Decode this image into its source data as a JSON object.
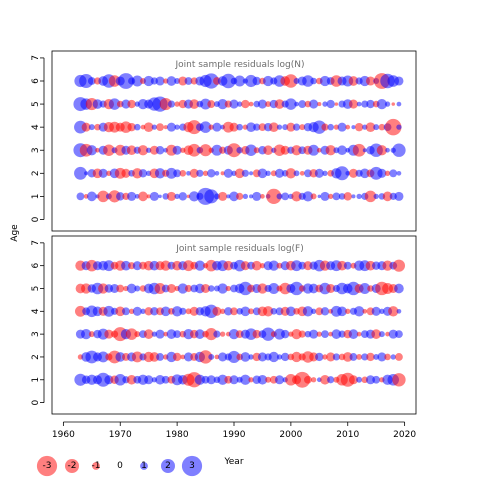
{
  "chart_data": [
    {
      "type": "scatter",
      "title": "Joint sample residuals log(N)",
      "ylabel": "Age",
      "xlim": [
        1958,
        2022
      ],
      "ylim": [
        -0.5,
        7.3
      ],
      "yticks": [
        0,
        1,
        2,
        3,
        4,
        5,
        6,
        7
      ],
      "ages": [
        1,
        2,
        3,
        4,
        5,
        6
      ],
      "years": [
        1963,
        1964,
        1965,
        1966,
        1967,
        1968,
        1969,
        1970,
        1971,
        1972,
        1973,
        1974,
        1975,
        1976,
        1977,
        1978,
        1979,
        1980,
        1981,
        1982,
        1983,
        1984,
        1985,
        1986,
        1987,
        1988,
        1989,
        1990,
        1991,
        1992,
        1993,
        1994,
        1995,
        1996,
        1997,
        1998,
        1999,
        2000,
        2001,
        2002,
        2003,
        2004,
        2005,
        2006,
        2007,
        2008,
        2009,
        2010,
        2011,
        2012,
        2013,
        2014,
        2015,
        2016,
        2017,
        2018,
        2019
      ],
      "residuals": [
        [
          1.0,
          -0.5,
          1.3,
          0.4,
          -1.6,
          0.7,
          -1.7,
          1.1,
          -0.9,
          1.2,
          0.5,
          -1.3,
          -0.4,
          1.2,
          0.3,
          0.8,
          -1.2,
          0.6,
          1.1,
          -0.3,
          1.4,
          0.9,
          2.5,
          2.0,
          0.7,
          -1.2,
          0.4,
          1.3,
          -0.9,
          0.6,
          0.4,
          1.2,
          -0.5,
          0.5,
          -2.2,
          0.7,
          1.0,
          0.6,
          -1.4,
          0.9,
          1.4,
          -0.7,
          0.3,
          1.2,
          -0.6,
          1.0,
          0.8,
          -1.1,
          0.4,
          0.6,
          0.9,
          -1.6,
          0.6,
          0.8,
          -1.3,
          0.9,
          1.2
        ],
        [
          1.8,
          0.4,
          1.1,
          -1.3,
          1.2,
          -0.6,
          1.3,
          -1.5,
          -1.2,
          0.8,
          -1.4,
          1.1,
          0.6,
          -1.3,
          1.4,
          -0.9,
          1.5,
          1.0,
          -0.8,
          0.5,
          -1.2,
          0.9,
          -0.6,
          1.1,
          0.5,
          -0.4,
          1.2,
          0.6,
          -1.3,
          0.9,
          0.4,
          -1.0,
          1.3,
          0.6,
          -0.7,
          1.2,
          0.8,
          -1.4,
          0.7,
          -0.5,
          1.0,
          -1.1,
          1.2,
          0.6,
          -0.8,
          1.4,
          2.0,
          0.5,
          -1.2,
          0.9,
          1.3,
          -1.0,
          1.8,
          1.2,
          -0.6,
          1.0,
          0.5
        ],
        [
          2.0,
          -1.8,
          1.4,
          -0.5,
          1.2,
          -1.6,
          0.7,
          -1.5,
          1.2,
          -1.3,
          0.9,
          -1.4,
          0.6,
          -1.2,
          1.1,
          0.5,
          -1.5,
          1.2,
          -0.6,
          -1.3,
          -1.8,
          0.8,
          -1.7,
          -0.6,
          1.5,
          -0.9,
          1.2,
          -2.0,
          0.8,
          -1.1,
          1.6,
          -0.7,
          1.1,
          -1.3,
          0.6,
          -1.6,
          -1.2,
          0.9,
          -1.4,
          1.0,
          -1.2,
          1.5,
          -0.5,
          1.2,
          -1.4,
          0.7,
          1.3,
          0.5,
          1.5,
          -1.8,
          0.4,
          1.1,
          1.9,
          -1.4,
          0.5,
          0.6,
          1.9
        ],
        [
          1.8,
          -1.2,
          0.7,
          -0.8,
          1.2,
          -1.4,
          -1.5,
          -1.2,
          -1.6,
          -1.1,
          0.8,
          -0.5,
          -1.3,
          0.6,
          -1.0,
          -0.4,
          1.2,
          0.6,
          0.9,
          -1.4,
          -2.0,
          1.0,
          1.6,
          -0.6,
          1.2,
          0.5,
          -1.5,
          -1.2,
          0.8,
          -0.6,
          1.3,
          0.9,
          -1.0,
          1.1,
          -1.3,
          0.6,
          0.7,
          -1.2,
          0.9,
          -0.7,
          1.1,
          1.4,
          1.9,
          -0.9,
          0.8,
          -0.6,
          1.2,
          -0.5,
          0.4,
          -1.1,
          0.6,
          -1.3,
          0.7,
          -0.8,
          1.0,
          -2.4,
          0.6
        ],
        [
          2.0,
          1.6,
          -1.7,
          1.3,
          0.9,
          -1.4,
          1.6,
          -0.8,
          1.2,
          -1.1,
          0.6,
          1.4,
          1.2,
          1.9,
          2.2,
          -1.7,
          0.9,
          -0.6,
          -1.1,
          1.2,
          -1.3,
          0.8,
          1.5,
          -1.0,
          0.7,
          1.4,
          -0.9,
          1.2,
          0.6,
          -1.1,
          -0.5,
          0.8,
          1.2,
          -0.7,
          1.1,
          -1.3,
          0.9,
          1.6,
          0.5,
          1.0,
          -0.8,
          1.2,
          -0.4,
          0.6,
          1.1,
          -0.3,
          0.9,
          1.3,
          -1.2,
          0.5,
          0.9,
          1.1,
          -0.8,
          1.4,
          0.6,
          -0.3,
          0.5
        ],
        [
          1.7,
          2.0,
          1.0,
          -0.9,
          1.3,
          1.9,
          -1.6,
          1.2,
          2.3,
          0.9,
          1.5,
          -0.7,
          1.4,
          0.9,
          1.2,
          -0.6,
          1.3,
          0.7,
          -1.2,
          1.0,
          -0.9,
          1.2,
          1.7,
          2.2,
          -1.0,
          1.3,
          2.1,
          0.8,
          1.5,
          0.6,
          1.7,
          1.1,
          -0.8,
          1.4,
          0.9,
          1.6,
          -1.3,
          -1.9,
          0.7,
          1.2,
          1.6,
          0.8,
          -0.8,
          1.4,
          1.0,
          -1.6,
          1.2,
          1.5,
          -1.3,
          0.9,
          1.4,
          -1.2,
          0.7,
          -2.3,
          2.1,
          1.6,
          1.2
        ]
      ]
    },
    {
      "type": "scatter",
      "title": "Joint sample residuals log(F)",
      "ylabel": "Age",
      "xlabel": "Year",
      "xlim": [
        1958,
        2022
      ],
      "ylim": [
        -0.5,
        7.3
      ],
      "xticks": [
        1960,
        1970,
        1980,
        1990,
        2000,
        2010,
        2020
      ],
      "yticks": [
        0,
        1,
        2,
        3,
        4,
        5,
        6,
        7
      ],
      "ages": [
        1,
        2,
        3,
        4,
        5,
        6
      ],
      "years": [
        1963,
        1964,
        1965,
        1966,
        1967,
        1968,
        1969,
        1970,
        1971,
        1972,
        1973,
        1974,
        1975,
        1976,
        1977,
        1978,
        1979,
        1980,
        1981,
        1982,
        1983,
        1984,
        1985,
        1986,
        1987,
        1988,
        1989,
        1990,
        1991,
        1992,
        1993,
        1994,
        1995,
        1996,
        1997,
        1998,
        1999,
        2000,
        2001,
        2002,
        2003,
        2004,
        2005,
        2006,
        2007,
        2008,
        2009,
        2010,
        2011,
        2012,
        2013,
        2014,
        2015,
        2016,
        2017,
        2018,
        2019
      ],
      "residuals": [
        [
          1.7,
          1.1,
          1.4,
          1.2,
          2.0,
          1.2,
          -1.1,
          1.6,
          0.9,
          -1.3,
          1.0,
          1.4,
          1.2,
          0.6,
          1.3,
          1.0,
          -1.0,
          1.5,
          1.3,
          -1.7,
          -2.2,
          1.4,
          1.0,
          1.2,
          0.8,
          1.4,
          -1.0,
          1.2,
          0.7,
          1.4,
          -0.6,
          1.1,
          1.3,
          -0.7,
          -1.0,
          1.2,
          0.6,
          -1.6,
          -1.2,
          -2.3,
          -1.0,
          -0.6,
          0.5,
          -1.3,
          0.9,
          -0.7,
          -1.6,
          -2.0,
          -1.2,
          0.7,
          -0.8,
          1.2,
          1.0,
          -0.6,
          1.4,
          1.6,
          -1.9
        ],
        [
          -0.6,
          1.3,
          1.8,
          1.2,
          1.5,
          -0.9,
          -1.8,
          1.3,
          -1.0,
          1.2,
          -1.5,
          0.9,
          -1.4,
          -1.3,
          1.0,
          -0.6,
          1.4,
          -1.1,
          -0.5,
          1.2,
          -1.0,
          1.4,
          -1.9,
          0.7,
          -0.5,
          1.2,
          0.9,
          1.7,
          -0.8,
          1.3,
          0.6,
          -1.1,
          1.2,
          0.9,
          1.4,
          0.6,
          1.1,
          -0.8,
          -1.4,
          -0.9,
          -1.6,
          -1.2,
          1.1,
          -0.6,
          -1.2,
          0.9,
          -0.8,
          -1.3,
          1.0,
          -0.7,
          0.9,
          -1.1,
          0.7,
          1.2,
          -0.8,
          0.6,
          -1.0
        ],
        [
          1.2,
          1.4,
          -0.7,
          1.1,
          1.5,
          -1.2,
          -0.9,
          -2.0,
          1.4,
          -1.6,
          -0.7,
          1.0,
          -1.3,
          0.6,
          1.2,
          -0.5,
          1.3,
          1.0,
          -0.8,
          1.4,
          -1.1,
          1.3,
          -0.8,
          -1.7,
          0.9,
          -0.6,
          -0.5,
          1.4,
          -1.0,
          1.2,
          1.6,
          -1.1,
          1.0,
          1.9,
          -0.7,
          1.5,
          1.1,
          -0.6,
          -1.4,
          -0.9,
          0.8,
          1.2,
          -0.6,
          1.0,
          -0.5,
          1.3,
          0.9,
          -1.1,
          1.3,
          -0.5,
          1.0,
          1.2,
          -1.3,
          0.7,
          -0.5,
          1.2,
          1.0
        ],
        [
          -1.5,
          1.0,
          1.6,
          1.3,
          -1.2,
          1.5,
          0.9,
          -1.3,
          1.0,
          -0.6,
          1.2,
          0.6,
          -1.1,
          1.1,
          -1.0,
          1.3,
          -0.8,
          1.4,
          0.9,
          -0.7,
          -1.2,
          1.1,
          1.4,
          1.9,
          -1.2,
          -0.6,
          1.1,
          -1.0,
          0.8,
          1.3,
          -0.7,
          1.0,
          -1.3,
          -1.4,
          0.8,
          1.0,
          -1.2,
          1.3,
          -0.8,
          -1.3,
          1.4,
          0.6,
          -1.0,
          1.1,
          -0.5,
          1.5,
          1.3,
          -0.6,
          0.9,
          1.4,
          -0.5,
          -1.0,
          1.2,
          0.6,
          1.2,
          -1.4,
          0.5
        ],
        [
          -1.3,
          -1.4,
          1.1,
          1.6,
          -1.4,
          1.1,
          1.2,
          -1.0,
          -0.6,
          1.3,
          0.7,
          -0.8,
          1.3,
          1.6,
          -1.5,
          1.0,
          -1.2,
          -0.6,
          1.4,
          -0.9,
          1.0,
          1.3,
          -1.2,
          0.8,
          0.7,
          1.4,
          -0.6,
          1.0,
          1.3,
          1.9,
          -1.0,
          1.2,
          -1.4,
          0.9,
          1.5,
          -0.7,
          -1.6,
          1.2,
          1.9,
          -0.8,
          1.4,
          1.3,
          -1.0,
          1.6,
          -1.2,
          0.9,
          1.6,
          1.3,
          1.9,
          -1.2,
          1.5,
          -0.8,
          1.2,
          -1.9,
          -1.5,
          -1.2,
          1.3
        ],
        [
          -1.4,
          1.2,
          -1.6,
          1.2,
          1.3,
          1.5,
          -1.0,
          -1.4,
          1.3,
          -0.9,
          1.2,
          -1.0,
          -1.3,
          1.3,
          -1.2,
          -1.4,
          1.0,
          -1.3,
          1.2,
          -1.5,
          -1.0,
          1.4,
          -0.6,
          -1.6,
          1.3,
          1.5,
          -1.3,
          1.0,
          1.6,
          -1.2,
          1.0,
          -1.3,
          -0.6,
          1.2,
          1.4,
          -0.7,
          1.2,
          -1.3,
          1.5,
          1.0,
          -1.2,
          1.1,
          1.6,
          -1.4,
          1.2,
          1.5,
          -1.3,
          1.0,
          -0.7,
          1.4,
          1.5,
          -1.3,
          1.1,
          1.2,
          -1.4,
          1.0,
          -1.7
        ]
      ]
    }
  ],
  "legend": {
    "values": [
      -3,
      -2,
      -1,
      0,
      1,
      2,
      3
    ],
    "labels": [
      "-3",
      "-2",
      "-1",
      "0",
      "1",
      "2",
      "3"
    ]
  },
  "colors": {
    "negative": "#ff0000",
    "positive": "#0000ff",
    "frame": "#000000",
    "title": "#6e6e6e"
  }
}
